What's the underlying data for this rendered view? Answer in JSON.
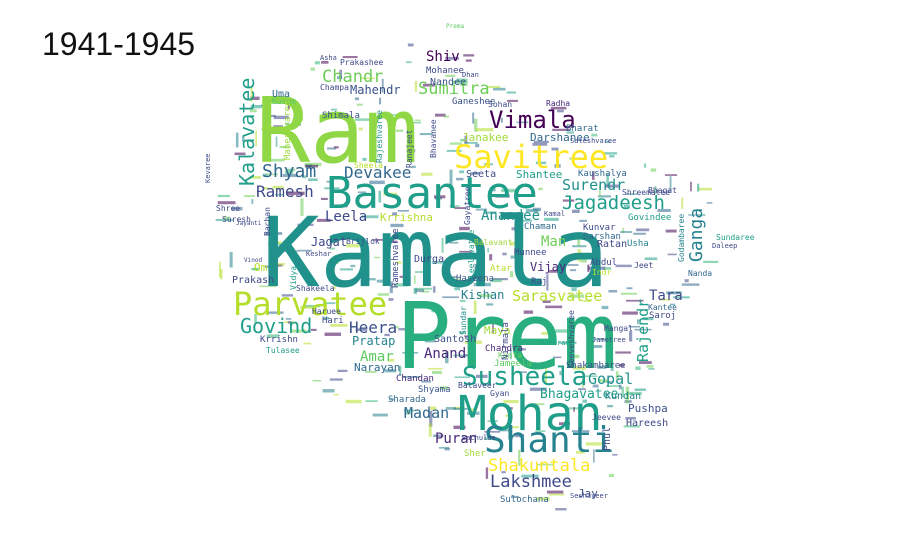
{
  "title": "1941-1945",
  "words": [
    {
      "text": "Ram",
      "size": 90,
      "color": "#8fd744",
      "rotate": 0
    },
    {
      "text": "Kamala",
      "size": 96,
      "color": "#21918c",
      "rotate": 0
    },
    {
      "text": "Prem",
      "size": 92,
      "color": "#29af7f",
      "rotate": 0
    },
    {
      "text": "Basantee",
      "size": 44,
      "color": "#1f9e89",
      "rotate": 0
    },
    {
      "text": "Mohan",
      "size": 48,
      "color": "#1f9e89",
      "rotate": 0
    },
    {
      "text": "Savitree",
      "size": 32,
      "color": "#fde725",
      "rotate": 0
    },
    {
      "text": "Parvatee",
      "size": 32,
      "color": "#b5de2b",
      "rotate": 0
    },
    {
      "text": "Shanti",
      "size": 36,
      "color": "#26828e",
      "rotate": 0
    },
    {
      "text": "Susheela",
      "size": 26,
      "color": "#1f9e89",
      "rotate": 0
    },
    {
      "text": "Vimala",
      "size": 24,
      "color": "#440154",
      "rotate": 0
    },
    {
      "text": "Jagadeesh",
      "size": 19,
      "color": "#1f9e89",
      "rotate": 0
    },
    {
      "text": "Govind",
      "size": 20,
      "color": "#1f9e89",
      "rotate": 0
    },
    {
      "text": "Shyam",
      "size": 18,
      "color": "#31688e",
      "rotate": 0
    },
    {
      "text": "Kalavatee",
      "size": 20,
      "color": "#1f9e89",
      "rotate": -90
    },
    {
      "text": "Sumitra",
      "size": 17,
      "color": "#6ece58",
      "rotate": 0
    },
    {
      "text": "Devakee",
      "size": 16,
      "color": "#31688e",
      "rotate": 0
    },
    {
      "text": "Chandr",
      "size": 17,
      "color": "#6ece58",
      "rotate": 0
    },
    {
      "text": "Shakuntala",
      "size": 17,
      "color": "#fde725",
      "rotate": 0
    },
    {
      "text": "Lakshmee",
      "size": 17,
      "color": "#3e4989",
      "rotate": 0
    },
    {
      "text": "Ganga",
      "size": 18,
      "color": "#26828e",
      "rotate": -90
    },
    {
      "text": "Heera",
      "size": 16,
      "color": "#3b528b",
      "rotate": 0
    },
    {
      "text": "Ramesh",
      "size": 16,
      "color": "#3e4989",
      "rotate": 0
    },
    {
      "text": "Surendr",
      "size": 15,
      "color": "#21918c",
      "rotate": 0
    },
    {
      "text": "Sarasvatee",
      "size": 15,
      "color": "#b5de2b",
      "rotate": 0
    },
    {
      "text": "Rajendr",
      "size": 15,
      "color": "#1f9e89",
      "rotate": -90
    },
    {
      "text": "Madan",
      "size": 15,
      "color": "#31688e",
      "rotate": 0
    },
    {
      "text": "Gopal",
      "size": 15,
      "color": "#21918c",
      "rotate": 0
    },
    {
      "text": "Anand",
      "size": 14,
      "color": "#482878",
      "rotate": 0
    },
    {
      "text": "Amar",
      "size": 14,
      "color": "#5ec962",
      "rotate": 0
    },
    {
      "text": "Leela",
      "size": 14,
      "color": "#3e4989",
      "rotate": 0
    },
    {
      "text": "Anandee",
      "size": 14,
      "color": "#21918c",
      "rotate": 0
    },
    {
      "text": "Puran",
      "size": 14,
      "color": "#482878",
      "rotate": 0
    },
    {
      "text": "Tara",
      "size": 14,
      "color": "#3e4989",
      "rotate": 0
    },
    {
      "text": "Man",
      "size": 14,
      "color": "#6ece58",
      "rotate": 0
    },
    {
      "text": "Shiv",
      "size": 14,
      "color": "#440154",
      "rotate": 0
    },
    {
      "text": "Bhagavatee",
      "size": 13,
      "color": "#1f9e89",
      "rotate": 0
    },
    {
      "text": "Jagat",
      "size": 12,
      "color": "#3e4989",
      "rotate": 0
    },
    {
      "text": "Vijay",
      "size": 12,
      "color": "#482878",
      "rotate": 0
    },
    {
      "text": "Kishan",
      "size": 12,
      "color": "#26828e",
      "rotate": 0
    },
    {
      "text": "Pratap",
      "size": 12,
      "color": "#26828e",
      "rotate": 0
    },
    {
      "text": "Narayan",
      "size": 11,
      "color": "#31688e",
      "rotate": 0
    },
    {
      "text": "Mahendr",
      "size": 12,
      "color": "#3b528b",
      "rotate": 0
    },
    {
      "text": "Janakee",
      "size": 11,
      "color": "#a0da39",
      "rotate": 0
    },
    {
      "text": "Darshanee",
      "size": 11,
      "color": "#31688e",
      "rotate": 0
    },
    {
      "text": "Shantee",
      "size": 11,
      "color": "#1f9e89",
      "rotate": 0
    },
    {
      "text": "Krrishna",
      "size": 11,
      "color": "#b5de2b",
      "rotate": 0
    },
    {
      "text": "Jay",
      "size": 11,
      "color": "#3b528b",
      "rotate": 0
    },
    {
      "text": "Pushpa",
      "size": 11,
      "color": "#3b528b",
      "rotate": 0
    },
    {
      "text": "Hareesh",
      "size": 10,
      "color": "#3e4989",
      "rotate": 0
    },
    {
      "text": "Kundan",
      "size": 10,
      "color": "#26828e",
      "rotate": 0
    },
    {
      "text": "Sulochana",
      "size": 9,
      "color": "#31688e",
      "rotate": 0
    },
    {
      "text": "Shyama",
      "size": 9,
      "color": "#3b528b",
      "rotate": 0
    },
    {
      "text": "Sharada",
      "size": 9,
      "color": "#31688e",
      "rotate": 0
    },
    {
      "text": "Chandan",
      "size": 9,
      "color": "#482878",
      "rotate": 0
    },
    {
      "text": "Durga",
      "size": 10,
      "color": "#3e4989",
      "rotate": 0
    },
    {
      "text": "Santosh",
      "size": 10,
      "color": "#3b528b",
      "rotate": 0
    },
    {
      "text": "Maya",
      "size": 11,
      "color": "#a0da39",
      "rotate": 0
    },
    {
      "text": "Kanta",
      "size": 8,
      "color": "#6ece58",
      "rotate": 0
    },
    {
      "text": "Chandra",
      "size": 9,
      "color": "#482878",
      "rotate": 0
    },
    {
      "text": "Jameela",
      "size": 9,
      "color": "#5ec962",
      "rotate": 0
    },
    {
      "text": "Uma",
      "size": 10,
      "color": "#31688e",
      "rotate": 0
    },
    {
      "text": "Mohanee",
      "size": 9,
      "color": "#3e4989",
      "rotate": 0
    },
    {
      "text": "Nandee",
      "size": 10,
      "color": "#3b528b",
      "rotate": 0
    },
    {
      "text": "Ganeshee",
      "size": 9,
      "color": "#3b528b",
      "rotate": 0
    },
    {
      "text": "Seeta",
      "size": 10,
      "color": "#3e4989",
      "rotate": 0
    },
    {
      "text": "Bharat",
      "size": 9,
      "color": "#31688e",
      "rotate": 0
    },
    {
      "text": "Kaushalya",
      "size": 9,
      "color": "#31688e",
      "rotate": 0
    },
    {
      "text": "Ratan",
      "size": 10,
      "color": "#3e4989",
      "rotate": 0
    },
    {
      "text": "Usha",
      "size": 9,
      "color": "#26828e",
      "rotate": 0
    },
    {
      "text": "Kunvar",
      "size": 9,
      "color": "#3e4989",
      "rotate": 0
    },
    {
      "text": "Darshan",
      "size": 9,
      "color": "#31688e",
      "rotate": 0
    },
    {
      "text": "Abdul",
      "size": 9,
      "color": "#3e4989",
      "rotate": 0
    },
    {
      "text": "Indr",
      "size": 8,
      "color": "#b5de2b",
      "rotate": 0
    },
    {
      "text": "Chaman",
      "size": 9,
      "color": "#31688e",
      "rotate": 0
    },
    {
      "text": "Munnee",
      "size": 9,
      "color": "#3e4989",
      "rotate": 0
    },
    {
      "text": "Raj",
      "size": 9,
      "color": "#3e4989",
      "rotate": 0
    },
    {
      "text": "Atar",
      "size": 9,
      "color": "#b5de2b",
      "rotate": 0
    },
    {
      "text": "Balavant",
      "size": 8,
      "color": "#a0da39",
      "rotate": 0
    },
    {
      "text": "Haseena",
      "size": 9,
      "color": "#3b528b",
      "rotate": 0
    },
    {
      "text": "Shakambaree",
      "size": 9,
      "color": "#3b528b",
      "rotate": 0
    },
    {
      "text": "Saroj",
      "size": 9,
      "color": "#3e4989",
      "rotate": 0
    },
    {
      "text": "Govindee",
      "size": 9,
      "color": "#1f9e89",
      "rotate": 0
    },
    {
      "text": "Sundaree",
      "size": 8,
      "color": "#1f9e89",
      "rotate": 0
    },
    {
      "text": "Kantee",
      "size": 8,
      "color": "#31688e",
      "rotate": 0
    },
    {
      "text": "Nanda",
      "size": 8,
      "color": "#31688e",
      "rotate": 0
    },
    {
      "text": "Bhagat",
      "size": 8,
      "color": "#3e4989",
      "rotate": 0
    },
    {
      "text": "Shreematee",
      "size": 8,
      "color": "#3e4989",
      "rotate": 0
    },
    {
      "text": "Radha",
      "size": 8,
      "color": "#482878",
      "rotate": 0
    },
    {
      "text": "Sohan",
      "size": 8,
      "color": "#3e4989",
      "rotate": 0
    },
    {
      "text": "Prakashee",
      "size": 8,
      "color": "#3e4989",
      "rotate": 0
    },
    {
      "text": "Champa",
      "size": 8,
      "color": "#3e4989",
      "rotate": 0
    },
    {
      "text": "Shimala",
      "size": 9,
      "color": "#3b528b",
      "rotate": 0
    },
    {
      "text": "Kusum",
      "size": 8,
      "color": "#5ec962",
      "rotate": 0
    },
    {
      "text": "Prakash",
      "size": 10,
      "color": "#3e4989",
      "rotate": 0
    },
    {
      "text": "Om",
      "size": 11,
      "color": "#b5de2b",
      "rotate": 0
    },
    {
      "text": "Krrishn",
      "size": 9,
      "color": "#3e4989",
      "rotate": 0
    },
    {
      "text": "Tulasee",
      "size": 8,
      "color": "#1f9e89",
      "rotate": 0
    },
    {
      "text": "Haruee",
      "size": 8,
      "color": "#3e4989",
      "rotate": 0
    },
    {
      "text": "Hari",
      "size": 9,
      "color": "#3e4989",
      "rotate": 0
    },
    {
      "text": "Shakeela",
      "size": 8,
      "color": "#3e4989",
      "rotate": 0
    },
    {
      "text": "Keshar",
      "size": 7,
      "color": "#3e4989",
      "rotate": 0
    },
    {
      "text": "Sheela",
      "size": 8,
      "color": "#b5de2b",
      "rotate": 0
    },
    {
      "text": "Suresh",
      "size": 8,
      "color": "#3e4989",
      "rotate": 0
    },
    {
      "text": "Shree",
      "size": 8,
      "color": "#3e4989",
      "rotate": 0
    },
    {
      "text": "Bachan",
      "size": 8,
      "color": "#3e4989",
      "rotate": -90
    },
    {
      "text": "Balaveer",
      "size": 8,
      "color": "#3e4989",
      "rotate": 0
    },
    {
      "text": "Gyan",
      "size": 8,
      "color": "#3e4989",
      "rotate": 0
    },
    {
      "text": "Uveeran",
      "size": 7,
      "color": "#1f9e89",
      "rotate": 0
    },
    {
      "text": "Sher",
      "size": 9,
      "color": "#a0da39",
      "rotate": 0
    },
    {
      "text": "Bachulee",
      "size": 7,
      "color": "#3e4989",
      "rotate": 0
    },
    {
      "text": "Seshaveer",
      "size": 7,
      "color": "#3e4989",
      "rotate": 0
    },
    {
      "text": "Jeevee",
      "size": 8,
      "color": "#3e4989",
      "rotate": 0
    },
    {
      "text": "Mangal",
      "size": 8,
      "color": "#3e4989",
      "rotate": 0
    },
    {
      "text": "Jamotree",
      "size": 7,
      "color": "#3e4989",
      "rotate": 0
    },
    {
      "text": "Sateshvaree",
      "size": 7,
      "color": "#3e4989",
      "rotate": 0
    },
    {
      "text": "Asha",
      "size": 7,
      "color": "#3e4989",
      "rotate": 0
    },
    {
      "text": "Dhan",
      "size": 7,
      "color": "#3e4989",
      "rotate": 0
    },
    {
      "text": "Prema",
      "size": 6,
      "color": "#5ec962",
      "rotate": 0
    },
    {
      "text": "Godambaree",
      "size": 8,
      "color": "#26828e",
      "rotate": -90
    },
    {
      "text": "Rajeshvaree",
      "size": 8,
      "color": "#21918c",
      "rotate": -90
    },
    {
      "text": "Maheshvaree",
      "size": 9,
      "color": "#a0da39",
      "rotate": -90
    },
    {
      "text": "Kevaree",
      "size": 7,
      "color": "#3e4989",
      "rotate": -90
    },
    {
      "text": "Vidya",
      "size": 8,
      "color": "#1f9e89",
      "rotate": -90
    },
    {
      "text": "Bhavanee",
      "size": 8,
      "color": "#3e4989",
      "rotate": -90
    },
    {
      "text": "Ranajeet",
      "size": 8,
      "color": "#3e4989",
      "rotate": -90
    },
    {
      "text": "Rameshvaree",
      "size": 9,
      "color": "#3e4989",
      "rotate": -90
    },
    {
      "text": "Leelavatee",
      "size": 8,
      "color": "#1f9e89",
      "rotate": -90
    },
    {
      "text": "Gayatree",
      "size": 8,
      "color": "#3e4989",
      "rotate": -90
    },
    {
      "text": "Sundar",
      "size": 8,
      "color": "#21918c",
      "rotate": -90
    },
    {
      "text": "Nirmala",
      "size": 9,
      "color": "#3e4989",
      "rotate": -90
    },
    {
      "text": "Geeveshvaree",
      "size": 8,
      "color": "#3e4989",
      "rotate": -90
    },
    {
      "text": "Phul",
      "size": 10,
      "color": "#3e4989",
      "rotate": -90
    },
    {
      "text": "Dharm",
      "size": 8,
      "color": "#a0da39",
      "rotate": 0
    },
    {
      "text": "Brijlok",
      "size": 8,
      "color": "#3e4989",
      "rotate": 0
    },
    {
      "text": "Jeet",
      "size": 8,
      "color": "#3e4989",
      "rotate": 0
    },
    {
      "text": "Kamal",
      "size": 7,
      "color": "#3e4989",
      "rotate": 0
    },
    {
      "text": "Daleep",
      "size": 7,
      "color": "#3e4989",
      "rotate": 0
    },
    {
      "text": "Jayanti",
      "size": 6,
      "color": "#3e4989",
      "rotate": 0
    },
    {
      "text": "Vinod",
      "size": 6,
      "color": "#3e4989",
      "rotate": 0
    }
  ]
}
